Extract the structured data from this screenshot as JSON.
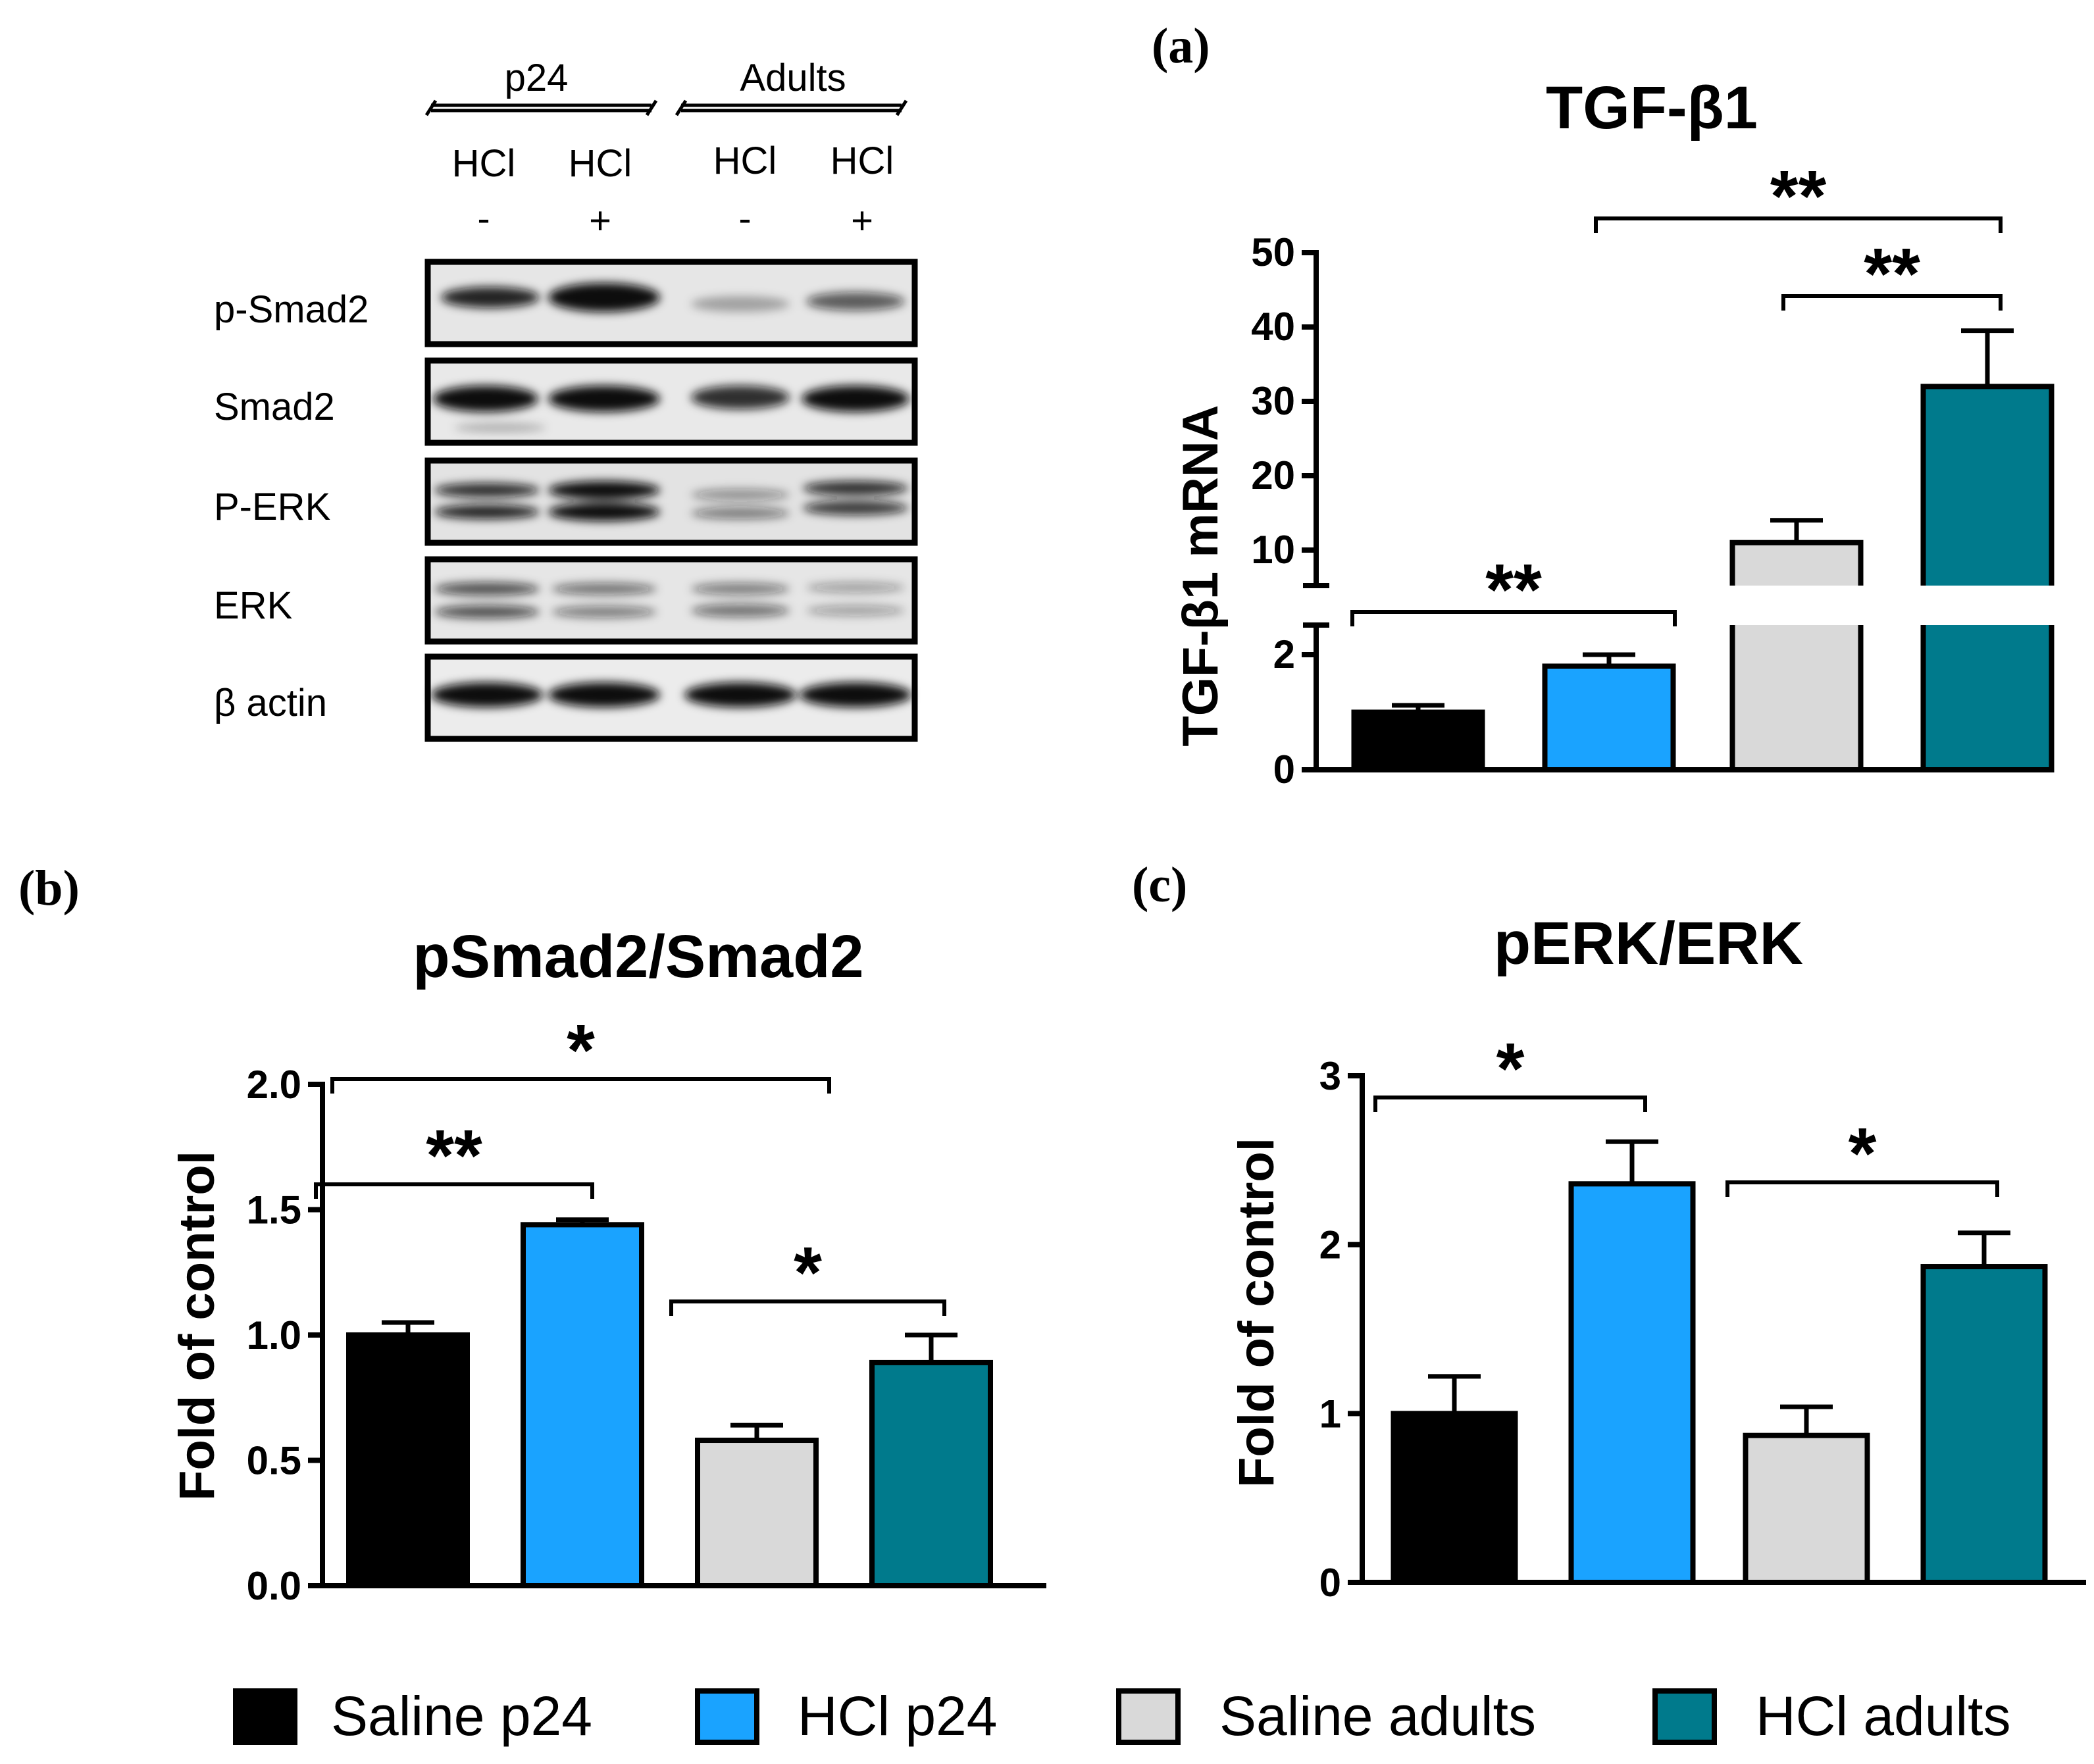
{
  "colors": {
    "saline_p24": "#000000",
    "hcl_p24": "#1aa3ff",
    "saline_adults": "#d9d9d9",
    "hcl_adults": "#007a8c",
    "axis": "#000000"
  },
  "blot": {
    "group_labels": [
      "p24",
      "Adults"
    ],
    "lane_treatment": [
      "HCl",
      "HCl",
      "HCl",
      "HCl"
    ],
    "lane_sign": [
      "-",
      "+",
      "-",
      "+"
    ],
    "row_labels": [
      "p-Smad2",
      "Smad2",
      "P-ERK",
      "ERK",
      "β actin"
    ]
  },
  "legend": {
    "items": [
      {
        "label": "Saline p24",
        "color": "#000000"
      },
      {
        "label": "HCl p24",
        "color": "#1aa3ff"
      },
      {
        "label": "Saline adults",
        "color": "#d9d9d9"
      },
      {
        "label": "HCl adults",
        "color": "#007a8c"
      }
    ]
  },
  "chart_data": [
    {
      "panel": "(a)",
      "type": "bar",
      "title": "TGF-β1",
      "ylabel": "TGF-β1 mRNA",
      "xlabel": "",
      "categories": [
        "Saline p24",
        "HCl p24",
        "Saline adults",
        "HCl adults"
      ],
      "values": [
        1.0,
        1.8,
        11.0,
        32.0
      ],
      "errors": [
        0.12,
        0.2,
        3.0,
        7.5
      ],
      "broken_axis": {
        "lower": [
          0,
          2.5
        ],
        "upper": [
          5,
          50
        ]
      },
      "yticks_lower": [
        "0",
        "2"
      ],
      "yticks_upper": [
        "10",
        "20",
        "30",
        "40",
        "50"
      ],
      "significance": [
        {
          "from": 0,
          "to": 1,
          "label": "**"
        },
        {
          "from": 2,
          "to": 3,
          "label": "**"
        },
        {
          "from": 1,
          "to": 3,
          "label": "**"
        }
      ]
    },
    {
      "panel": "(b)",
      "type": "bar",
      "title": "pSmad2/Smad2",
      "ylabel": "Fold of control",
      "xlabel": "",
      "categories": [
        "Saline p24",
        "HCl p24",
        "Saline adults",
        "HCl adults"
      ],
      "values": [
        1.0,
        1.44,
        0.58,
        0.89
      ],
      "errors": [
        0.05,
        0.02,
        0.06,
        0.11
      ],
      "ylim": [
        0,
        2.0
      ],
      "yticks": [
        "0.0",
        "0.5",
        "1.0",
        "1.5",
        "2.0"
      ],
      "significance": [
        {
          "from": 0,
          "to": 1,
          "label": "**"
        },
        {
          "from": 0,
          "to": 2,
          "label": "*"
        },
        {
          "from": 2,
          "to": 3,
          "label": "*"
        }
      ]
    },
    {
      "panel": "(c)",
      "type": "bar",
      "title": "pERK/ERK",
      "ylabel": "Fold of control",
      "xlabel": "",
      "categories": [
        "Saline p24",
        "HCl p24",
        "Saline adults",
        "HCl adults"
      ],
      "values": [
        1.0,
        2.36,
        0.87,
        1.87
      ],
      "errors": [
        0.22,
        0.25,
        0.17,
        0.2
      ],
      "ylim": [
        0,
        3
      ],
      "yticks": [
        "0",
        "1",
        "2",
        "3"
      ],
      "significance": [
        {
          "from": 0,
          "to": 1,
          "label": "*"
        },
        {
          "from": 2,
          "to": 3,
          "label": "*"
        }
      ]
    }
  ]
}
